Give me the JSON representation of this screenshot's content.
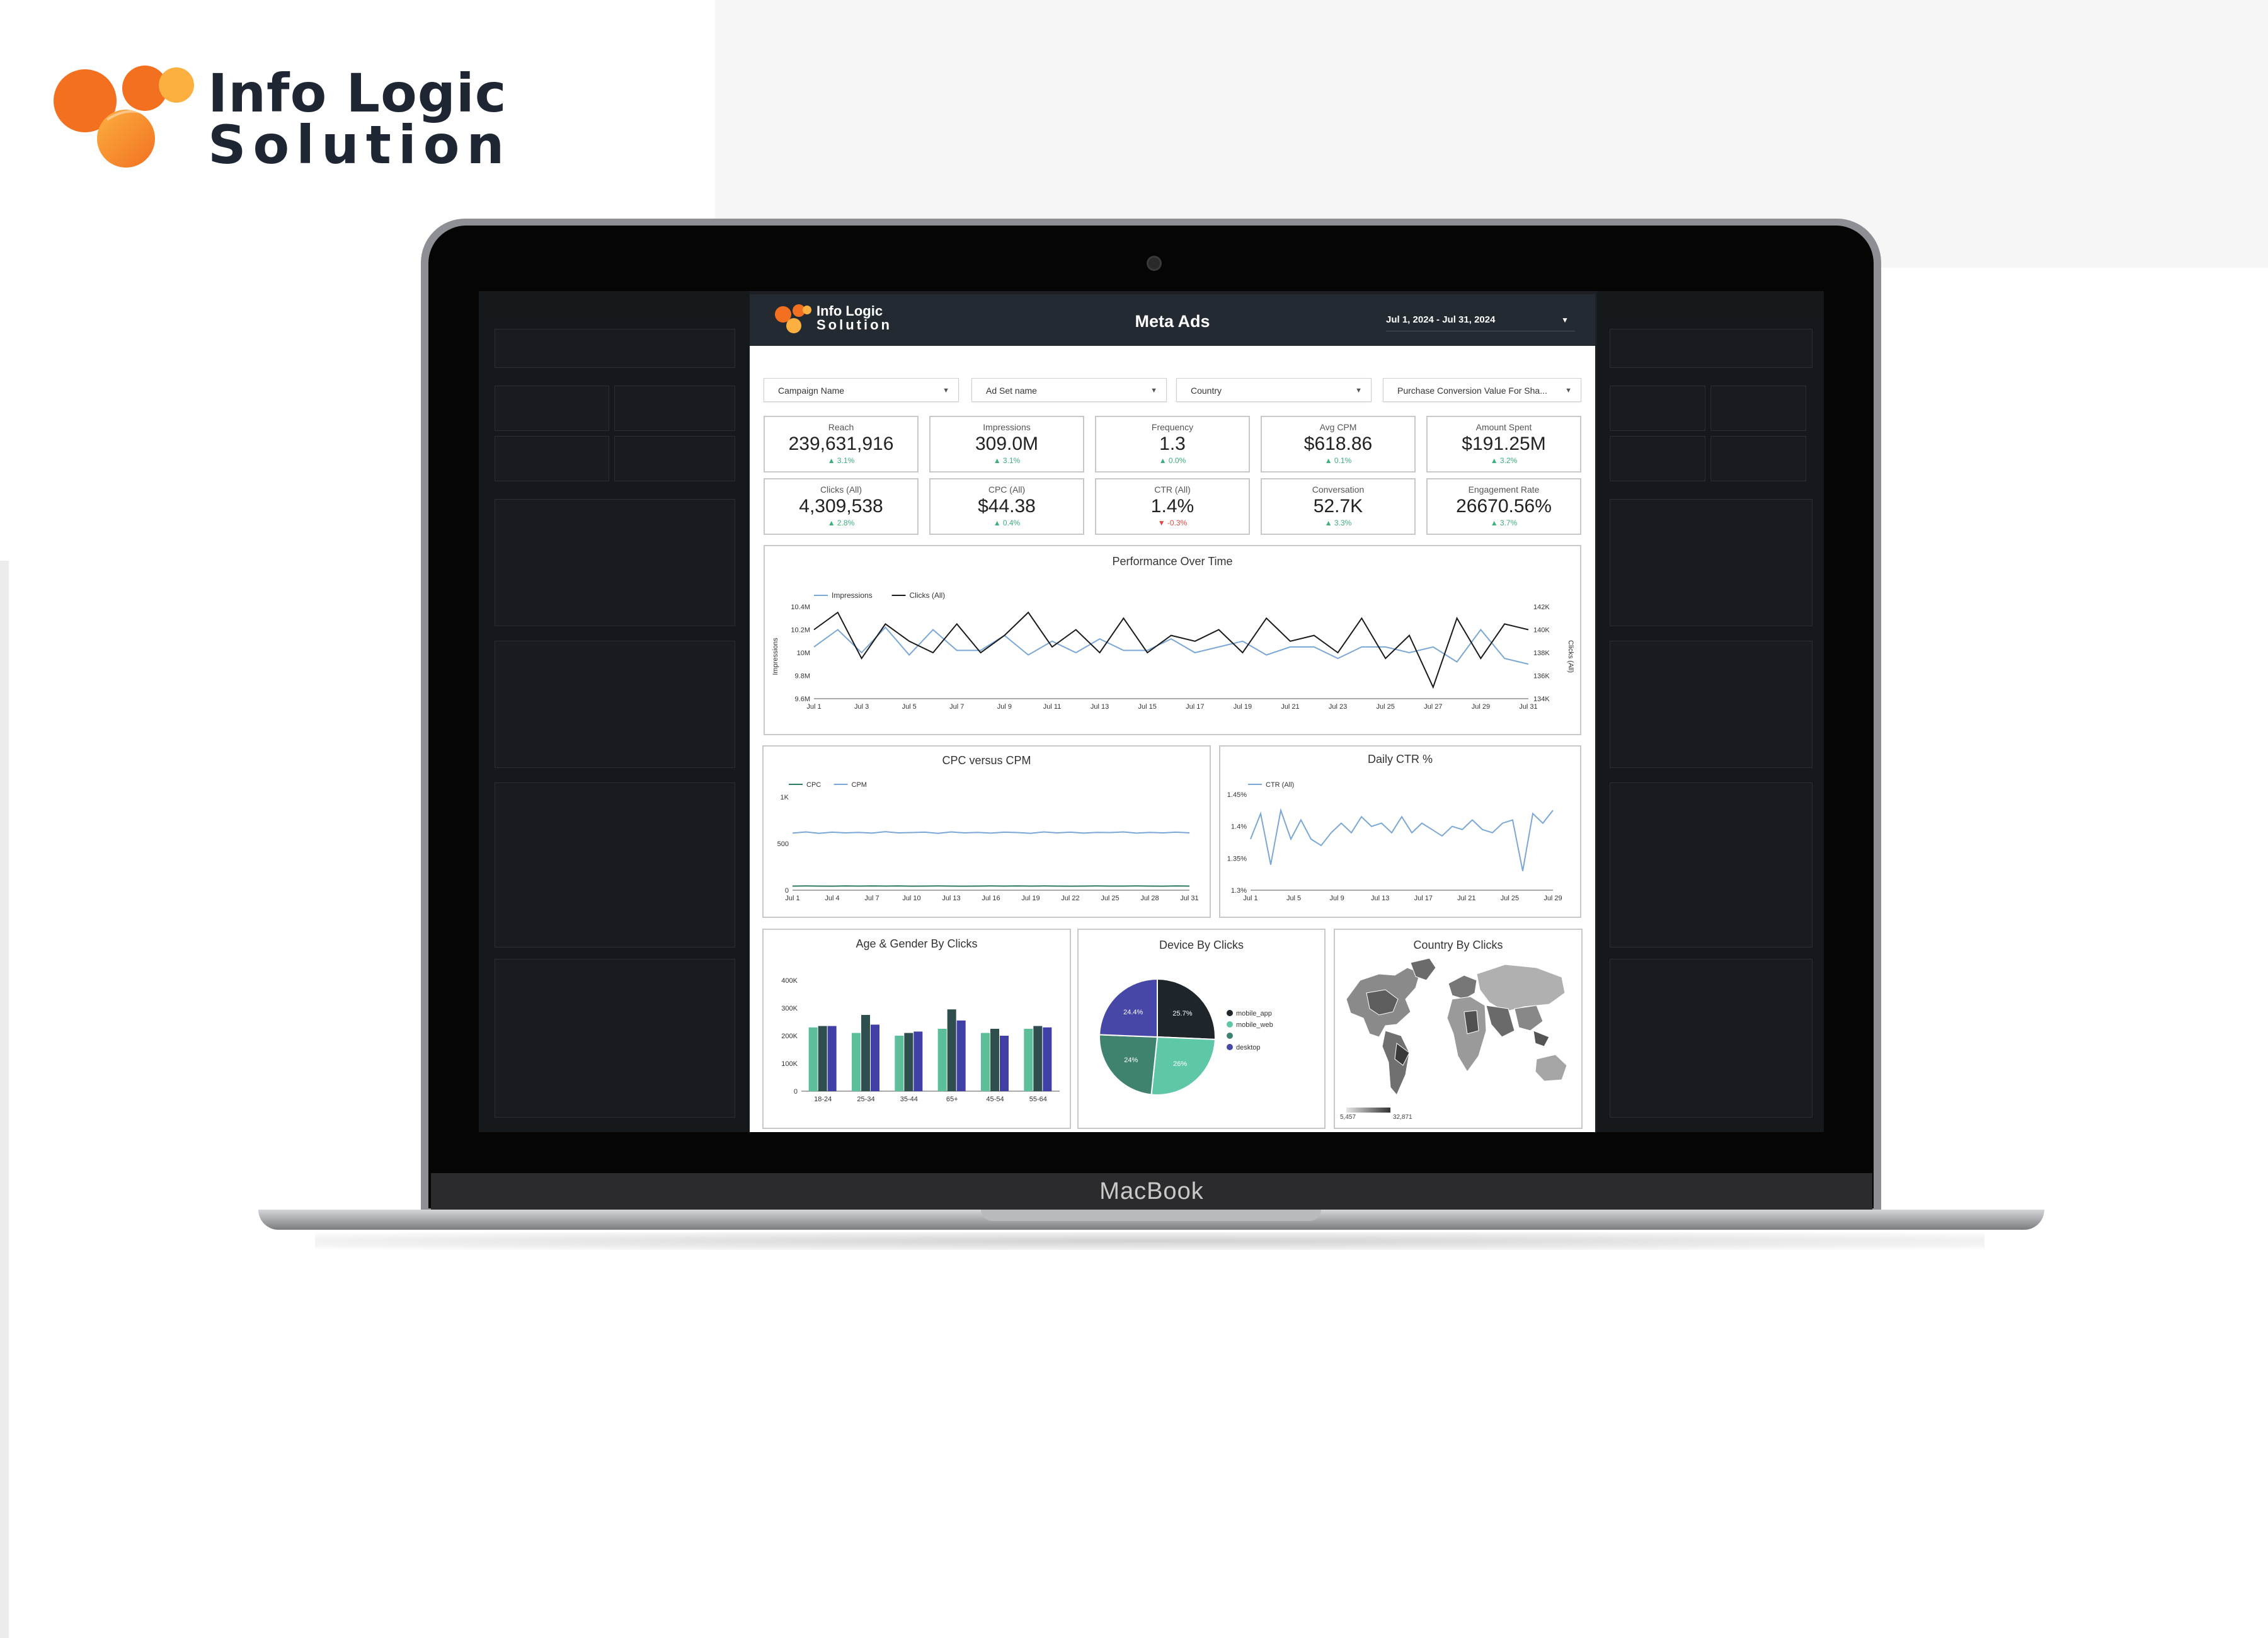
{
  "brand": {
    "line1": "Info Logic",
    "line2": "Solution",
    "colors": {
      "orange": "#f37021",
      "amber": "#fbb040",
      "dark": "#1e2533"
    }
  },
  "laptop": {
    "chin_label": "MacBook"
  },
  "dashboard": {
    "logo_line1": "Info Logic",
    "logo_line2": "Solution",
    "title": "Meta Ads",
    "date_range": "Jul 1, 2024 - Jul 31, 2024",
    "filters": [
      "Campaign Name",
      "Ad Set name",
      "Country",
      "Purchase Conversion Value For Sha..."
    ],
    "kpis": [
      {
        "label": "Reach",
        "value": "239,631,916",
        "change": "3.1%",
        "dir": "up"
      },
      {
        "label": "Impressions",
        "value": "309.0M",
        "change": "3.1%",
        "dir": "up"
      },
      {
        "label": "Frequency",
        "value": "1.3",
        "change": "0.0%",
        "dir": "up"
      },
      {
        "label": "Avg CPM",
        "value": "$618.86",
        "change": "0.1%",
        "dir": "up"
      },
      {
        "label": "Amount Spent",
        "value": "$191.25M",
        "change": "3.2%",
        "dir": "up"
      },
      {
        "label": "Clicks (All)",
        "value": "4,309,538",
        "change": "2.8%",
        "dir": "up"
      },
      {
        "label": "CPC (All)",
        "value": "$44.38",
        "change": "0.4%",
        "dir": "up"
      },
      {
        "label": "CTR (All)",
        "value": "1.4%",
        "change": "-0.3%",
        "dir": "down"
      },
      {
        "label": "Conversation",
        "value": "52.7K",
        "change": "3.3%",
        "dir": "up"
      },
      {
        "label": "Engagement Rate",
        "value": "26670.56%",
        "change": "3.7%",
        "dir": "up"
      }
    ],
    "country_map": {
      "title": "Country By Clicks",
      "legend_min": "5,457",
      "legend_max": "32,871"
    }
  },
  "chart_data": [
    {
      "type": "line",
      "title": "Performance Over Time",
      "ylabel": "Impressions",
      "y2label": "Clicks (All)",
      "x_ticks": [
        "Jul 1",
        "Jul 3",
        "Jul 5",
        "Jul 7",
        "Jul 9",
        "Jul 11",
        "Jul 13",
        "Jul 15",
        "Jul 17",
        "Jul 19",
        "Jul 21",
        "Jul 23",
        "Jul 25",
        "Jul 27",
        "Jul 29",
        "Jul 31"
      ],
      "y_ticks": [
        "9.6M",
        "9.8M",
        "10M",
        "10.2M",
        "10.4M"
      ],
      "y2_ticks": [
        "134K",
        "136K",
        "138K",
        "140K",
        "142K"
      ],
      "ylim": [
        9.6,
        10.4
      ],
      "y2lim": [
        134,
        142
      ],
      "series": [
        {
          "name": "Impressions",
          "axis": "left",
          "color": "#7ba7d6",
          "values": [
            10.05,
            10.2,
            10.0,
            10.22,
            9.98,
            10.2,
            10.02,
            10.02,
            10.15,
            9.98,
            10.1,
            10.0,
            10.12,
            10.02,
            10.02,
            10.12,
            10.0,
            10.05,
            10.1,
            9.98,
            10.05,
            10.05,
            9.95,
            10.05,
            10.05,
            10.0,
            10.05,
            9.92,
            10.2,
            9.95,
            9.9
          ]
        },
        {
          "name": "Clicks (All)",
          "axis": "right",
          "color": "#1a1a1a",
          "values": [
            140,
            141.5,
            137.5,
            140.5,
            139,
            138,
            140.5,
            138,
            139.5,
            141.5,
            138.5,
            140,
            138,
            141,
            138,
            139.5,
            139,
            140,
            138,
            141,
            139,
            139.5,
            138,
            141,
            137.5,
            139.5,
            135,
            141,
            137.5,
            140.5,
            140
          ]
        }
      ]
    },
    {
      "type": "line",
      "title": "CPC versus CPM",
      "x_ticks": [
        "Jul 1",
        "Jul 4",
        "Jul 7",
        "Jul 10",
        "Jul 13",
        "Jul 16",
        "Jul 19",
        "Jul 22",
        "Jul 25",
        "Jul 28",
        "Jul 31"
      ],
      "y_ticks": [
        "0",
        "500",
        "1K"
      ],
      "ylim": [
        0,
        1000
      ],
      "series": [
        {
          "name": "CPC",
          "color": "#2f7a5f",
          "values": [
            44,
            45,
            44,
            43,
            45,
            44,
            46,
            44,
            45,
            43,
            44,
            45,
            44,
            43,
            44,
            45,
            44,
            46,
            44,
            45,
            44,
            43,
            44,
            45,
            44,
            44,
            45,
            44,
            43,
            45,
            44
          ]
        },
        {
          "name": "CPM",
          "color": "#7ba7d6",
          "values": [
            612,
            625,
            610,
            622,
            615,
            620,
            612,
            628,
            615,
            618,
            622,
            610,
            625,
            615,
            620,
            612,
            622,
            618,
            610,
            625,
            615,
            622,
            612,
            620,
            618,
            625,
            612,
            620,
            615,
            622,
            615
          ]
        }
      ]
    },
    {
      "type": "line",
      "title": "Daily CTR %",
      "x_ticks": [
        "Jul 1",
        "Jul 5",
        "Jul 9",
        "Jul 13",
        "Jul 17",
        "Jul 21",
        "Jul 25",
        "Jul 29"
      ],
      "y_ticks": [
        "1.3%",
        "1.35%",
        "1.4%",
        "1.45%"
      ],
      "ylim": [
        1.3,
        1.45
      ],
      "series": [
        {
          "name": "CTR (All)",
          "color": "#7ba7d6",
          "values": [
            1.38,
            1.42,
            1.34,
            1.425,
            1.38,
            1.41,
            1.38,
            1.37,
            1.39,
            1.405,
            1.39,
            1.415,
            1.4,
            1.405,
            1.39,
            1.415,
            1.39,
            1.405,
            1.395,
            1.385,
            1.4,
            1.395,
            1.41,
            1.395,
            1.39,
            1.405,
            1.41,
            1.33,
            1.42,
            1.405,
            1.425
          ]
        }
      ]
    },
    {
      "type": "bar",
      "title": "Age & Gender By Clicks",
      "categories": [
        "18-24",
        "25-34",
        "35-44",
        "65+",
        "45-54",
        "55-64"
      ],
      "y_ticks": [
        "0",
        "100K",
        "200K",
        "300K",
        "400K"
      ],
      "ylim": [
        0,
        400
      ],
      "series": [
        {
          "color": "#5dbf9a",
          "values": [
            230,
            210,
            200,
            225,
            210,
            225
          ]
        },
        {
          "color": "#2f4f4f",
          "values": [
            235,
            275,
            210,
            295,
            225,
            235
          ]
        },
        {
          "color": "#3f3fa6",
          "values": [
            235,
            240,
            215,
            255,
            200,
            230
          ]
        }
      ]
    },
    {
      "type": "pie",
      "title": "Device By Clicks",
      "legend": [
        "mobile_app",
        "mobile_web",
        "",
        "desktop"
      ],
      "slices": [
        {
          "label": "mobile_app",
          "value": 25.7,
          "text": "25.7%",
          "color": "#1e262c"
        },
        {
          "label": "mobile_web",
          "value": 26.0,
          "text": "26%",
          "color": "#5ec7a8"
        },
        {
          "label": "",
          "value": 24.0,
          "text": "24%",
          "color": "#3f8270"
        },
        {
          "label": "desktop",
          "value": 24.4,
          "text": "24.4%",
          "color": "#4747a8"
        }
      ]
    }
  ]
}
